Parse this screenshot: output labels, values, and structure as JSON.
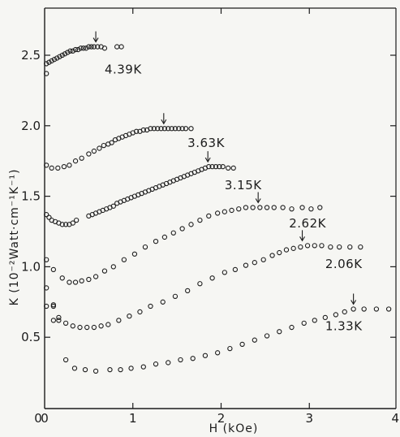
{
  "chart_data": {
    "type": "scatter",
    "xlabel": "H (kOe)",
    "ylabel": "K (10⁻²Watt·cm⁻¹K⁻¹)",
    "xlim": [
      0,
      4
    ],
    "ylim": [
      0,
      2.8
    ],
    "x_ticks": [
      "0",
      "1",
      "2",
      "3",
      "4"
    ],
    "y_ticks": [
      "0.5",
      "1.0",
      "1.5",
      "2.0",
      "2.5"
    ],
    "grid": false,
    "series": [
      {
        "name": "4.39K",
        "arrow_x": 0.58,
        "points": [
          [
            0.02,
            2.44
          ],
          [
            0.05,
            2.45
          ],
          [
            0.08,
            2.46
          ],
          [
            0.11,
            2.47
          ],
          [
            0.14,
            2.48
          ],
          [
            0.17,
            2.49
          ],
          [
            0.2,
            2.5
          ],
          [
            0.23,
            2.51
          ],
          [
            0.26,
            2.52
          ],
          [
            0.29,
            2.53
          ],
          [
            0.32,
            2.53
          ],
          [
            0.35,
            2.54
          ],
          [
            0.38,
            2.54
          ],
          [
            0.41,
            2.55
          ],
          [
            0.44,
            2.55
          ],
          [
            0.47,
            2.55
          ],
          [
            0.5,
            2.56
          ],
          [
            0.53,
            2.56
          ],
          [
            0.56,
            2.56
          ],
          [
            0.6,
            2.56
          ],
          [
            0.64,
            2.56
          ],
          [
            0.68,
            2.55
          ],
          [
            0.82,
            2.56
          ],
          [
            0.87,
            2.56
          ],
          [
            0.02,
            2.37
          ]
        ]
      },
      {
        "name": "3.63K",
        "arrow_x": 1.35,
        "points": [
          [
            0.02,
            1.72
          ],
          [
            0.08,
            1.7
          ],
          [
            0.15,
            1.7
          ],
          [
            0.22,
            1.71
          ],
          [
            0.28,
            1.72
          ],
          [
            0.35,
            1.75
          ],
          [
            0.42,
            1.77
          ],
          [
            0.5,
            1.8
          ],
          [
            0.56,
            1.82
          ],
          [
            0.62,
            1.84
          ],
          [
            0.67,
            1.86
          ],
          [
            0.72,
            1.87
          ],
          [
            0.76,
            1.88
          ],
          [
            0.8,
            1.9
          ],
          [
            0.84,
            1.91
          ],
          [
            0.88,
            1.92
          ],
          [
            0.92,
            1.93
          ],
          [
            0.96,
            1.94
          ],
          [
            1.0,
            1.95
          ],
          [
            1.04,
            1.96
          ],
          [
            1.08,
            1.96
          ],
          [
            1.12,
            1.97
          ],
          [
            1.16,
            1.97
          ],
          [
            1.2,
            1.98
          ],
          [
            1.24,
            1.98
          ],
          [
            1.28,
            1.98
          ],
          [
            1.32,
            1.98
          ],
          [
            1.36,
            1.98
          ],
          [
            1.4,
            1.98
          ],
          [
            1.44,
            1.98
          ],
          [
            1.48,
            1.98
          ],
          [
            1.52,
            1.98
          ],
          [
            1.56,
            1.98
          ],
          [
            1.6,
            1.98
          ],
          [
            1.66,
            1.98
          ]
        ]
      },
      {
        "name": "3.15K",
        "arrow_x": 1.85,
        "points": [
          [
            0.02,
            1.37
          ],
          [
            0.05,
            1.35
          ],
          [
            0.08,
            1.33
          ],
          [
            0.12,
            1.32
          ],
          [
            0.16,
            1.31
          ],
          [
            0.2,
            1.3
          ],
          [
            0.24,
            1.3
          ],
          [
            0.28,
            1.3
          ],
          [
            0.32,
            1.31
          ],
          [
            0.36,
            1.33
          ],
          [
            0.5,
            1.36
          ],
          [
            0.54,
            1.37
          ],
          [
            0.58,
            1.38
          ],
          [
            0.62,
            1.39
          ],
          [
            0.66,
            1.4
          ],
          [
            0.7,
            1.41
          ],
          [
            0.74,
            1.42
          ],
          [
            0.78,
            1.43
          ],
          [
            0.82,
            1.45
          ],
          [
            0.86,
            1.46
          ],
          [
            0.9,
            1.47
          ],
          [
            0.94,
            1.48
          ],
          [
            0.98,
            1.49
          ],
          [
            1.02,
            1.5
          ],
          [
            1.06,
            1.51
          ],
          [
            1.1,
            1.52
          ],
          [
            1.14,
            1.53
          ],
          [
            1.18,
            1.54
          ],
          [
            1.22,
            1.55
          ],
          [
            1.26,
            1.56
          ],
          [
            1.3,
            1.57
          ],
          [
            1.34,
            1.58
          ],
          [
            1.38,
            1.59
          ],
          [
            1.42,
            1.6
          ],
          [
            1.46,
            1.61
          ],
          [
            1.5,
            1.62
          ],
          [
            1.54,
            1.63
          ],
          [
            1.58,
            1.64
          ],
          [
            1.62,
            1.65
          ],
          [
            1.66,
            1.66
          ],
          [
            1.7,
            1.67
          ],
          [
            1.74,
            1.68
          ],
          [
            1.78,
            1.69
          ],
          [
            1.82,
            1.7
          ],
          [
            1.86,
            1.71
          ],
          [
            1.9,
            1.71
          ],
          [
            1.94,
            1.71
          ],
          [
            1.98,
            1.71
          ],
          [
            2.02,
            1.71
          ],
          [
            2.08,
            1.7
          ],
          [
            2.14,
            1.7
          ]
        ]
      },
      {
        "name": "2.62K",
        "arrow_x": 2.42,
        "points": [
          [
            0.02,
            1.05
          ],
          [
            0.1,
            0.98
          ],
          [
            0.2,
            0.92
          ],
          [
            0.28,
            0.89
          ],
          [
            0.35,
            0.89
          ],
          [
            0.42,
            0.9
          ],
          [
            0.5,
            0.91
          ],
          [
            0.58,
            0.93
          ],
          [
            0.68,
            0.97
          ],
          [
            0.78,
            1.0
          ],
          [
            0.9,
            1.05
          ],
          [
            1.02,
            1.09
          ],
          [
            1.14,
            1.14
          ],
          [
            1.26,
            1.18
          ],
          [
            1.36,
            1.21
          ],
          [
            1.46,
            1.24
          ],
          [
            1.56,
            1.27
          ],
          [
            1.66,
            1.3
          ],
          [
            1.76,
            1.33
          ],
          [
            1.86,
            1.36
          ],
          [
            1.96,
            1.38
          ],
          [
            2.04,
            1.39
          ],
          [
            2.12,
            1.4
          ],
          [
            2.2,
            1.41
          ],
          [
            2.28,
            1.42
          ],
          [
            2.36,
            1.42
          ],
          [
            2.44,
            1.42
          ],
          [
            2.52,
            1.42
          ],
          [
            2.6,
            1.42
          ],
          [
            2.7,
            1.42
          ],
          [
            2.8,
            1.41
          ],
          [
            2.92,
            1.42
          ],
          [
            3.02,
            1.41
          ],
          [
            3.12,
            1.42
          ]
        ]
      },
      {
        "name": "2.06K",
        "arrow_x": 2.92,
        "points": [
          [
            0.02,
            0.85
          ],
          [
            0.1,
            0.73
          ],
          [
            0.16,
            0.64
          ],
          [
            0.24,
            0.6
          ],
          [
            0.32,
            0.58
          ],
          [
            0.4,
            0.57
          ],
          [
            0.48,
            0.57
          ],
          [
            0.56,
            0.57
          ],
          [
            0.64,
            0.58
          ],
          [
            0.72,
            0.59
          ],
          [
            0.84,
            0.62
          ],
          [
            0.96,
            0.65
          ],
          [
            1.08,
            0.68
          ],
          [
            1.2,
            0.72
          ],
          [
            1.34,
            0.75
          ],
          [
            1.48,
            0.79
          ],
          [
            1.62,
            0.83
          ],
          [
            1.76,
            0.88
          ],
          [
            1.9,
            0.92
          ],
          [
            2.04,
            0.96
          ],
          [
            2.16,
            0.98
          ],
          [
            2.28,
            1.01
          ],
          [
            2.38,
            1.03
          ],
          [
            2.48,
            1.05
          ],
          [
            2.58,
            1.08
          ],
          [
            2.66,
            1.1
          ],
          [
            2.74,
            1.12
          ],
          [
            2.82,
            1.13
          ],
          [
            2.9,
            1.14
          ],
          [
            2.98,
            1.15
          ],
          [
            3.06,
            1.15
          ],
          [
            3.14,
            1.15
          ],
          [
            3.24,
            1.14
          ],
          [
            3.34,
            1.14
          ],
          [
            3.46,
            1.14
          ],
          [
            3.58,
            1.14
          ]
        ]
      },
      {
        "name": "1.33K",
        "arrow_x": 3.5,
        "points": [
          [
            0.02,
            0.72
          ],
          [
            0.1,
            0.72
          ],
          [
            0.1,
            0.62
          ],
          [
            0.16,
            0.62
          ],
          [
            0.24,
            0.34
          ],
          [
            0.34,
            0.28
          ],
          [
            0.46,
            0.27
          ],
          [
            0.58,
            0.26
          ],
          [
            0.74,
            0.27
          ],
          [
            0.86,
            0.27
          ],
          [
            0.98,
            0.28
          ],
          [
            1.12,
            0.29
          ],
          [
            1.26,
            0.31
          ],
          [
            1.4,
            0.32
          ],
          [
            1.54,
            0.34
          ],
          [
            1.68,
            0.35
          ],
          [
            1.82,
            0.37
          ],
          [
            1.96,
            0.39
          ],
          [
            2.1,
            0.42
          ],
          [
            2.24,
            0.45
          ],
          [
            2.38,
            0.48
          ],
          [
            2.52,
            0.51
          ],
          [
            2.66,
            0.54
          ],
          [
            2.8,
            0.57
          ],
          [
            2.94,
            0.6
          ],
          [
            3.06,
            0.62
          ],
          [
            3.18,
            0.64
          ],
          [
            3.3,
            0.66
          ],
          [
            3.4,
            0.68
          ],
          [
            3.5,
            0.7
          ],
          [
            3.62,
            0.7
          ],
          [
            3.76,
            0.7
          ],
          [
            3.9,
            0.7
          ]
        ]
      }
    ]
  }
}
